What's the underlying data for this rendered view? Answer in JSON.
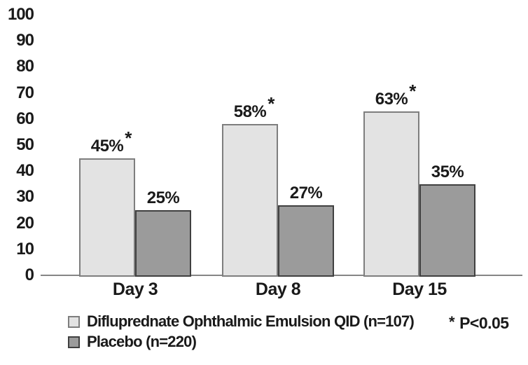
{
  "figure": {
    "background": "#ffffff",
    "text_color": "#1a1a1a",
    "axis_line_color": "#868686"
  },
  "chart_data": {
    "type": "bar",
    "title": "",
    "xlabel": "",
    "ylabel": "",
    "categories": [
      "Day 3",
      "Day 8",
      "Day 15"
    ],
    "series": [
      {
        "key": "difluprednate",
        "name": "Difluprednate Ophthalmic Emulsion QID (n=107)",
        "values": [
          45,
          58,
          63
        ],
        "labels": [
          "45%",
          "58%",
          "63%"
        ],
        "significant": [
          true,
          true,
          true
        ],
        "fill": "#e3e3e3",
        "border": "#7e7e7e"
      },
      {
        "key": "placebo",
        "name": "Placebo (n=220)",
        "values": [
          25,
          27,
          35
        ],
        "labels": [
          "25%",
          "27%",
          "35%"
        ],
        "significant": [
          false,
          false,
          false
        ],
        "fill": "#9b9b9b",
        "border": "#404040"
      }
    ],
    "ylim": [
      0,
      100
    ],
    "yticks": [
      0,
      10,
      20,
      30,
      40,
      50,
      60,
      70,
      80,
      90,
      100
    ],
    "grid": false,
    "legend_position": "bottom-left",
    "significance_marker": "*",
    "significance_note_text": "P<0.05"
  },
  "legend": {
    "items": [
      {
        "label": "Difluprednate Ophthalmic Emulsion QID (n=107)"
      },
      {
        "label": "Placebo (n=220)"
      }
    ]
  }
}
